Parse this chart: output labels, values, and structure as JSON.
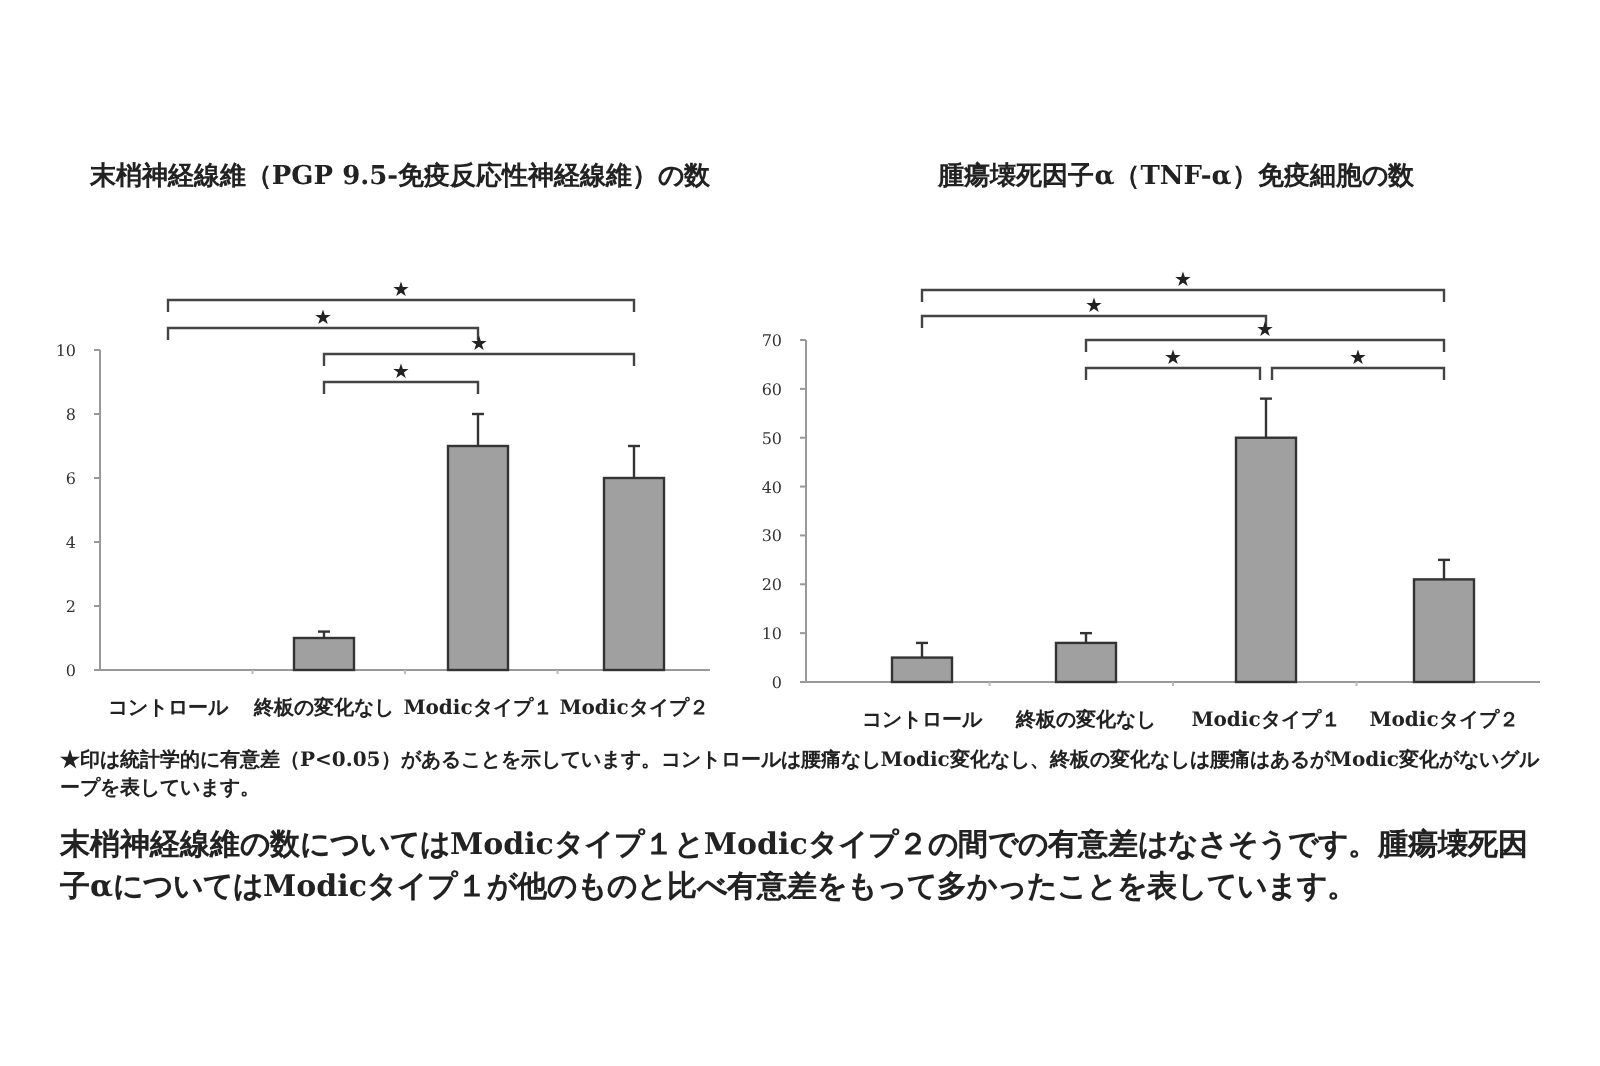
{
  "chart_data": [
    {
      "type": "bar",
      "title": "末梢神経線維（PGP 9.5-免疫反応性神経線維）の数",
      "categories": [
        "コントロール",
        "終板の変化なし",
        "Modicタイプ１",
        "Modicタイプ２"
      ],
      "values": [
        0,
        1,
        7,
        6
      ],
      "errors": [
        null,
        [
          1,
          1.2
        ],
        [
          7,
          8
        ],
        [
          6,
          7
        ]
      ],
      "color": "#a0a0a0",
      "ylim": [
        0,
        10
      ],
      "yticks": [
        0,
        2,
        4,
        6,
        8,
        10
      ],
      "annotations": [
        "★",
        "★",
        "★",
        "★"
      ]
    },
    {
      "type": "bar",
      "title": "腫瘍壊死因子α（TNF-α）免疫細胞の数",
      "categories": [
        "コントロール",
        "終板の変化なし",
        "Modicタイプ１",
        "Modicタイプ２"
      ],
      "values": [
        5,
        8,
        50,
        21
      ],
      "errors": [
        [
          5,
          8
        ],
        [
          8,
          10
        ],
        [
          50,
          58
        ],
        [
          21,
          25
        ]
      ],
      "color": "#a0a0a0",
      "ylim": [
        0,
        70
      ],
      "yticks": [
        0,
        10,
        20,
        30,
        40,
        50,
        60,
        70
      ],
      "annotations": [
        "★",
        "★",
        "★",
        "★",
        "★"
      ]
    },
    {
      "type": "other",
      "annotations": [
        "★印は統計学的に有意差（P<0.05）があることを示しています。コントロールは腰痛なしModic変化なし、終板の変化なしは腰痛はあるがModic変化がないグループを表しています。",
        "末梢神経線維の数についてはModicタイプ１とModicタイプ２の間での有意差はなさそうです。腫瘍壊死因子αについてはModicタイプ１が他のものと比べ有意差をもって多かったことを表しています。"
      ]
    }
  ]
}
